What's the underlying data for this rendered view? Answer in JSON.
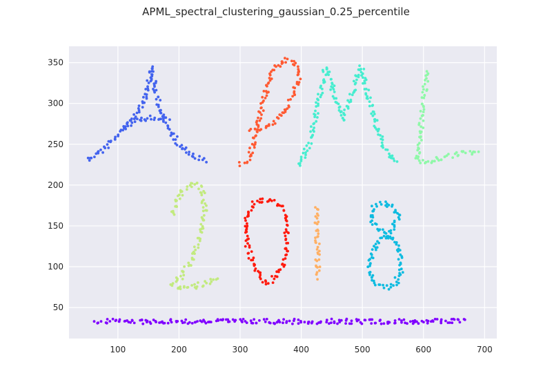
{
  "chart_data": {
    "type": "scatter",
    "title": "APML_spectral_clustering_gaussian_0.25_percentile",
    "xlabel": "",
    "ylabel": "",
    "xlim": [
      20,
      720
    ],
    "ylim": [
      12,
      370
    ],
    "xticks": [
      100,
      200,
      300,
      400,
      500,
      600,
      700
    ],
    "yticks": [
      50,
      100,
      150,
      200,
      250,
      300,
      350
    ],
    "grid": true,
    "background": "#eaeaf2",
    "clusters": [
      {
        "color": "#4363ee",
        "strokes": [
          [
            [
              50,
              232
            ],
            [
              75,
              243
            ],
            [
              100,
              262
            ],
            [
              120,
              276
            ],
            [
              135,
              292
            ],
            [
              150,
              318
            ],
            [
              155,
              345
            ]
          ],
          [
            [
              155,
              345
            ],
            [
              160,
              322
            ],
            [
              165,
              305
            ],
            [
              175,
              282
            ],
            [
              185,
              265
            ],
            [
              200,
              250
            ],
            [
              220,
              238
            ],
            [
              245,
              229
            ]
          ],
          [
            [
              110,
              268
            ],
            [
              125,
              278
            ],
            [
              140,
              280
            ],
            [
              155,
              283
            ],
            [
              170,
              281
            ],
            [
              185,
              280
            ]
          ]
        ]
      },
      {
        "color": "#ff5a33",
        "strokes": [
          [
            [
              300,
              225
            ],
            [
              315,
              233
            ],
            [
              325,
              260
            ],
            [
              335,
              290
            ],
            [
              345,
              322
            ],
            [
              355,
              345
            ],
            [
              375,
              353
            ],
            [
              385,
              350
            ],
            [
              393,
              345
            ],
            [
              395,
              330
            ],
            [
              388,
              310
            ],
            [
              375,
              292
            ],
            [
              360,
              280
            ],
            [
              345,
              272
            ],
            [
              325,
              268
            ],
            [
              315,
              265
            ]
          ]
        ]
      },
      {
        "color": "#46edcf",
        "strokes": [
          [
            [
              395,
              223
            ],
            [
              410,
              245
            ],
            [
              420,
              275
            ],
            [
              430,
              310
            ],
            [
              440,
              343
            ],
            [
              448,
              325
            ],
            [
              460,
              300
            ],
            [
              470,
              280
            ],
            [
              478,
              300
            ],
            [
              490,
              325
            ],
            [
              498,
              345
            ],
            [
              505,
              320
            ],
            [
              520,
              280
            ],
            [
              530,
              260
            ],
            [
              540,
              240
            ],
            [
              555,
              225
            ]
          ]
        ]
      },
      {
        "color": "#8ff8a8",
        "strokes": [
          [
            [
              605,
              340
            ],
            [
              600,
              300
            ],
            [
              596,
              270
            ],
            [
              592,
              245
            ],
            [
              590,
              230
            ],
            [
              610,
              228
            ],
            [
              630,
              233
            ],
            [
              650,
              237
            ],
            [
              670,
              240
            ],
            [
              690,
              241
            ]
          ]
        ]
      },
      {
        "color": "#c2ea7f",
        "strokes": [
          [
            [
              190,
              163
            ],
            [
              195,
              180
            ],
            [
              205,
              193
            ],
            [
              220,
              201
            ],
            [
              232,
              201
            ],
            [
              240,
              190
            ],
            [
              242,
              170
            ],
            [
              238,
              148
            ],
            [
              230,
              128
            ],
            [
              218,
              105
            ],
            [
              205,
              88
            ],
            [
              190,
              78
            ],
            [
              200,
              73
            ],
            [
              220,
              75
            ],
            [
              245,
              80
            ],
            [
              262,
              88
            ]
          ]
        ]
      },
      {
        "color": "#ff1a0d",
        "strokes": [
          [
            [
              340,
              82
            ],
            [
              330,
              92
            ],
            [
              318,
              110
            ],
            [
              310,
              130
            ],
            [
              308,
              148
            ],
            [
              312,
              165
            ],
            [
              322,
              178
            ],
            [
              340,
              182
            ],
            [
              358,
              180
            ],
            [
              370,
              170
            ],
            [
              377,
              150
            ],
            [
              376,
              125
            ],
            [
              372,
              105
            ],
            [
              360,
              88
            ],
            [
              345,
              80
            ],
            [
              340,
              82
            ]
          ]
        ]
      },
      {
        "color": "#ffb065",
        "strokes": [
          [
            [
              428,
              86
            ],
            [
              427,
              110
            ],
            [
              426,
              130
            ],
            [
              425,
              150
            ],
            [
              425,
              175
            ]
          ]
        ]
      },
      {
        "color": "#0ebbe0",
        "strokes": [
          [
            [
              540,
              140
            ],
            [
              525,
              148
            ],
            [
              513,
              160
            ],
            [
              518,
              172
            ],
            [
              535,
              177
            ],
            [
              550,
              175
            ],
            [
              558,
              162
            ],
            [
              550,
              148
            ],
            [
              540,
              138
            ],
            [
              525,
              130
            ],
            [
              515,
              115
            ],
            [
              512,
              100
            ],
            [
              515,
              87
            ],
            [
              525,
              78
            ],
            [
              540,
              75
            ],
            [
              555,
              80
            ],
            [
              563,
              95
            ],
            [
              562,
              115
            ],
            [
              555,
              130
            ],
            [
              540,
              140
            ]
          ]
        ]
      },
      {
        "color": "#8000ff",
        "strokes": [
          [
            [
              65,
              33
            ],
            [
              165,
              33
            ],
            [
              265,
              33
            ],
            [
              365,
              33
            ],
            [
              465,
              33
            ],
            [
              565,
              33
            ],
            [
              670,
              33
            ]
          ]
        ]
      }
    ]
  }
}
